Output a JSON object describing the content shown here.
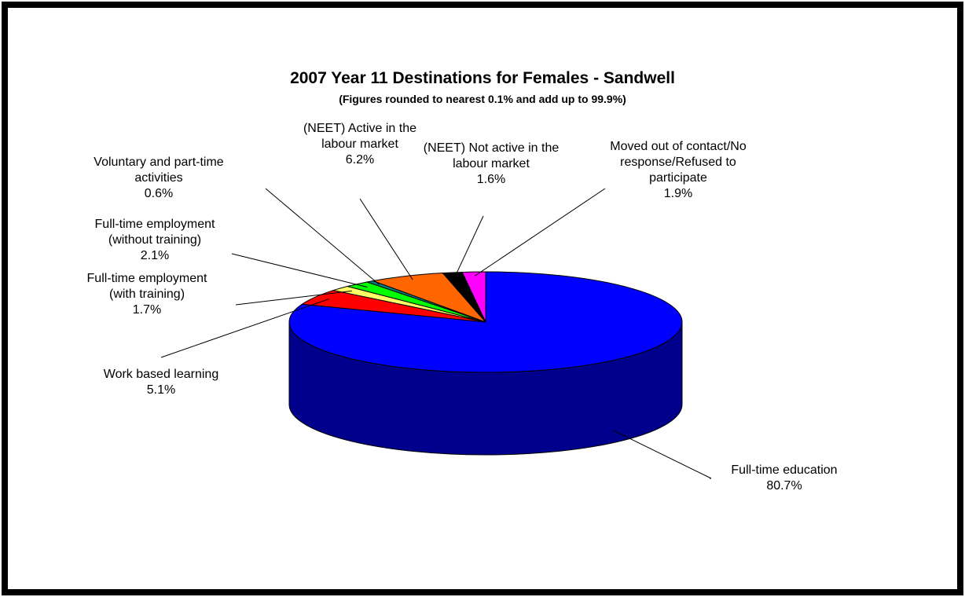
{
  "chart_data": {
    "type": "pie",
    "title": "2007 Year 11 Destinations for Females - Sandwell",
    "subtitle": "(Figures rounded to nearest 0.1% and add up to 99.9%)",
    "slices": [
      {
        "label_lines": [
          "Full-time education"
        ],
        "value": 80.7,
        "value_label": "80.7%",
        "color": "#0000FF"
      },
      {
        "label_lines": [
          "Work based learning"
        ],
        "value": 5.1,
        "value_label": "5.1%",
        "color": "#FF0000"
      },
      {
        "label_lines": [
          "Full-time employment",
          "(with training)"
        ],
        "value": 1.7,
        "value_label": "1.7%",
        "color": "#FFFF66"
      },
      {
        "label_lines": [
          "Full-time employment",
          "(without training)"
        ],
        "value": 2.1,
        "value_label": "2.1%",
        "color": "#00FF00"
      },
      {
        "label_lines": [
          "Voluntary and part-time",
          "activities"
        ],
        "value": 0.6,
        "value_label": "0.6%",
        "color": "#008080"
      },
      {
        "label_lines": [
          "(NEET) Active in the",
          "labour market"
        ],
        "value": 6.2,
        "value_label": "6.2%",
        "color": "#FF6600"
      },
      {
        "label_lines": [
          "(NEET) Not active in the",
          "labour market"
        ],
        "value": 1.6,
        "value_label": "1.6%",
        "color": "#000000"
      },
      {
        "label_lines": [
          "Moved out of contact/No",
          "response/Refused to",
          "participate"
        ],
        "value": 1.9,
        "value_label": "1.9%",
        "color": "#FF00FF"
      }
    ]
  }
}
